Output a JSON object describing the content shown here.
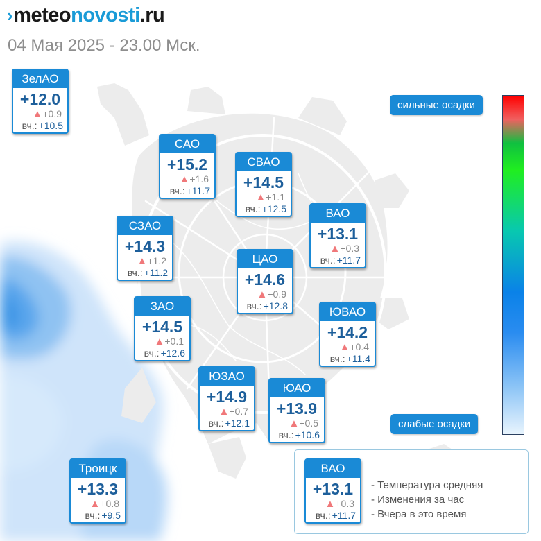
{
  "header": {
    "logo": {
      "prefix": "meteo",
      "brand": "novosti",
      "suffix": ".ru"
    },
    "datetime": "04 Мая 2025 - 23.00 Мск."
  },
  "colors": {
    "accent": "#1a8ad6",
    "temp_text": "#1d5f9b",
    "up_arrow": "#f0787a"
  },
  "districts": [
    {
      "name": "ЗелАО",
      "temp": "+12.0",
      "change": "+0.9",
      "yesterday_label": "вч.:",
      "yesterday": "+10.5",
      "trend": "up"
    },
    {
      "name": "САО",
      "temp": "+15.2",
      "change": "+1.6",
      "yesterday_label": "вч.:",
      "yesterday": "+11.7",
      "trend": "up"
    },
    {
      "name": "СВАО",
      "temp": "+14.5",
      "change": "+1.1",
      "yesterday_label": "вч.:",
      "yesterday": "+12.5",
      "trend": "up"
    },
    {
      "name": "ВАО",
      "temp": "+13.1",
      "change": "+0.3",
      "yesterday_label": "вч.:",
      "yesterday": "+11.7",
      "trend": "up"
    },
    {
      "name": "СЗАО",
      "temp": "+14.3",
      "change": "+1.2",
      "yesterday_label": "вч.:",
      "yesterday": "+11.2",
      "trend": "up"
    },
    {
      "name": "ЦАО",
      "temp": "+14.6",
      "change": "+0.9",
      "yesterday_label": "вч.:",
      "yesterday": "+12.8",
      "trend": "up"
    },
    {
      "name": "ЗАО",
      "temp": "+14.5",
      "change": "+0.1",
      "yesterday_label": "вч.:",
      "yesterday": "+12.6",
      "trend": "up"
    },
    {
      "name": "ЮВАО",
      "temp": "+14.2",
      "change": "+0.4",
      "yesterday_label": "вч.:",
      "yesterday": "+11.4",
      "trend": "up"
    },
    {
      "name": "ЮЗАО",
      "temp": "+14.9",
      "change": "+0.7",
      "yesterday_label": "вч.:",
      "yesterday": "+12.1",
      "trend": "up"
    },
    {
      "name": "ЮАО",
      "temp": "+13.9",
      "change": "+0.5",
      "yesterday_label": "вч.:",
      "yesterday": "+10.6",
      "trend": "up"
    },
    {
      "name": "Троицк",
      "temp": "+13.3",
      "change": "+0.8",
      "yesterday_label": "вч.:",
      "yesterday": "+9.5",
      "trend": "up"
    }
  ],
  "precip_scale": {
    "high_label": "сильные осадки",
    "low_label": "слабые осадки"
  },
  "legend": {
    "sample": {
      "name": "ВАО",
      "temp": "+13.1",
      "change": "+0.3",
      "yesterday_label": "вч.:",
      "yesterday": "+11.7",
      "trend": "up"
    },
    "items": [
      "- Температура средняя",
      "- Изменения за час",
      "- Вчера в это время"
    ]
  }
}
